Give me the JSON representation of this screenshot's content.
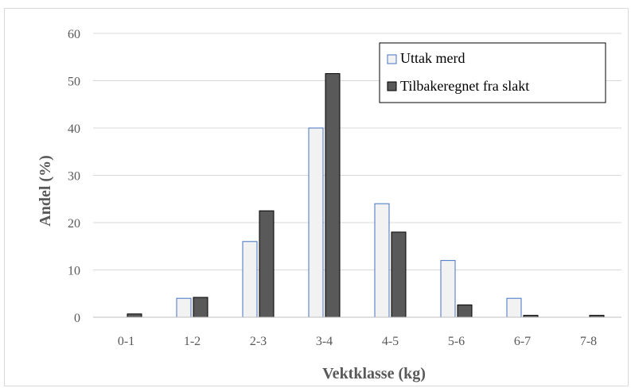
{
  "chart_data": {
    "type": "bar",
    "categories": [
      "0-1",
      "1-2",
      "2-3",
      "3-4",
      "4-5",
      "5-6",
      "6-7",
      "7-8"
    ],
    "series": [
      {
        "name": "Uttak merd",
        "values": [
          0,
          4,
          16,
          40,
          24,
          12,
          4,
          0
        ],
        "fill": "#f2f2f2",
        "stroke": "#4472c4"
      },
      {
        "name": "Tilbakeregnet fra slakt",
        "values": [
          0.7,
          4.2,
          22.5,
          51.5,
          18,
          2.6,
          0.4,
          0.4
        ],
        "fill": "#595959",
        "stroke": "#000000"
      }
    ],
    "xlabel": "Vektklasse (kg)",
    "ylabel": "Andel (%)",
    "ylim": [
      0,
      60
    ],
    "yticks": [
      0,
      10,
      20,
      30,
      40,
      50,
      60
    ],
    "grid": true,
    "legend": "top-right"
  }
}
